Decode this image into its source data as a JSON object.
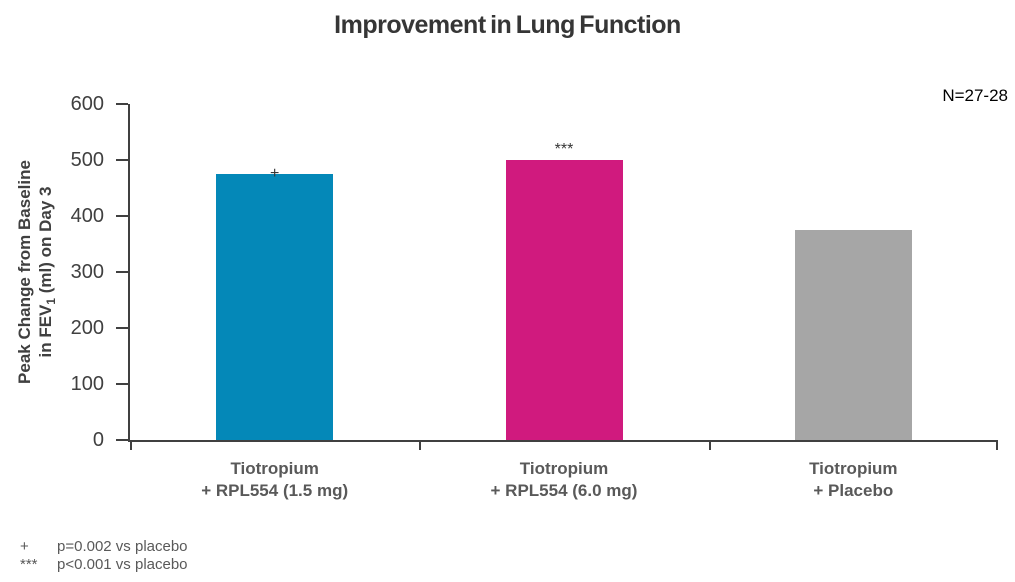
{
  "title": "Improvement in Lung Function",
  "annotation": "N=27-28",
  "y_axis": {
    "title_line1": "Peak Change from Baseline",
    "title_line2_pre": "in FEV",
    "title_line2_sub": "1",
    "title_line2_post": " (ml) on Day 3"
  },
  "chart_data": {
    "type": "bar",
    "title": "Improvement in Lung Function",
    "categories": [
      "Tiotropium\n+ RPL554 (1.5 mg)",
      "Tiotropium\n+ RPL554 (6.0 mg)",
      "Tiotropium\n+ Placebo"
    ],
    "values": [
      475,
      500,
      375
    ],
    "bar_colors": [
      "#0488B8",
      "#D01A7E",
      "#A6A6A6"
    ],
    "significance_labels": [
      "+",
      "***",
      ""
    ],
    "annotation": "N=27-28",
    "xlabel": "",
    "ylabel": "Peak Change from Baseline in FEV1 (ml) on Day 3",
    "yticks": [
      0,
      100,
      200,
      300,
      400,
      500,
      600
    ],
    "ylim": [
      0,
      600
    ],
    "grid": false,
    "legend": false,
    "axis_color": "#404040"
  },
  "footnotes": [
    {
      "symbol": "+",
      "text": "p=0.002 vs placebo"
    },
    {
      "symbol": "***",
      "text": "p<0.001 vs placebo"
    }
  ]
}
